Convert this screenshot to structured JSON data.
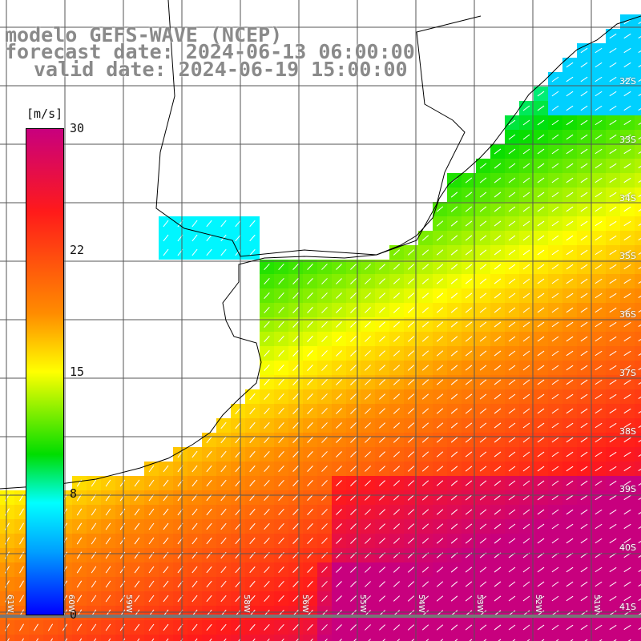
{
  "title": {
    "model": "modelo GEFS-WAVE (NCEP)",
    "forecast": "forecast date: 2024-06-13 06:00:00",
    "valid": "valid date: 2024-06-19 15:00:00"
  },
  "colorbar": {
    "units": "[m/s]",
    "ticks": [
      "30",
      "22",
      "15",
      "8",
      "0"
    ],
    "colors": [
      "#c8007e",
      "#ff1a1a",
      "#ff8c00",
      "#ffff00",
      "#00dd00",
      "#00ffff",
      "#00a0ff",
      "#0000ff"
    ]
  },
  "lat_labels": [
    "32S",
    "33S",
    "34S",
    "35S",
    "36S",
    "37S",
    "38S",
    "39S",
    "40S",
    "41S"
  ],
  "lon_labels": [
    "61W",
    "60W",
    "59W",
    "58W",
    "56W",
    "55W",
    "54W",
    "53W",
    "52W",
    "51W"
  ],
  "colors": {
    "land": "#ffffff",
    "grid": "#555555",
    "coast": "#000000",
    "arrow": "#ffffff"
  }
}
